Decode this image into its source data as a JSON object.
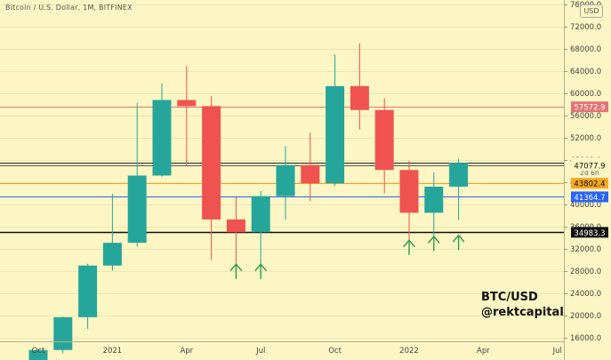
{
  "header": {
    "title": "Bitcoin / U.S. Dollar, 1M, BITFINEX"
  },
  "currency_button": "USD",
  "watermark": {
    "ticker": "BTC/USD",
    "handle": "@rektcapital"
  },
  "colors": {
    "up": "#26a69a",
    "down": "#ef5350",
    "background": "#fbf6c4"
  },
  "chart_data": {
    "type": "candlestick",
    "ylim": [
      15000,
      76000
    ],
    "y_ticks": [
      16000,
      20000,
      24000,
      28000,
      32000,
      36000,
      40000,
      44000,
      48000,
      52000,
      56000,
      60000,
      64000,
      68000,
      72000,
      76000
    ],
    "y_tick_labels": [
      "16000.0",
      "20000.0",
      "24000.0",
      "28000.0",
      "32000.0",
      "36000.0",
      "40000.0",
      "44000.0",
      "48000.0",
      "52000.0",
      "56000.0",
      "60000.0",
      "64000.0",
      "68000.0",
      "72000.0",
      "76000.0"
    ],
    "x_labels": [
      {
        "index": 0,
        "label": "Oct"
      },
      {
        "index": 3,
        "label": "2021"
      },
      {
        "index": 6,
        "label": "Apr"
      },
      {
        "index": 9,
        "label": "Jul"
      },
      {
        "index": 12,
        "label": "Oct"
      },
      {
        "index": 15,
        "label": "2022"
      },
      {
        "index": 18,
        "label": "Apr"
      },
      {
        "index": 21,
        "label": "Jul"
      }
    ],
    "candles": [
      {
        "month": "2020-10",
        "open": 10800,
        "high": 14000,
        "low": 10400,
        "close": 13800
      },
      {
        "month": "2020-11",
        "open": 13800,
        "high": 19800,
        "low": 13200,
        "close": 19700
      },
      {
        "month": "2020-12",
        "open": 19700,
        "high": 29300,
        "low": 17600,
        "close": 29000
      },
      {
        "month": "2021-01",
        "open": 29000,
        "high": 41900,
        "low": 28100,
        "close": 33100
      },
      {
        "month": "2021-02",
        "open": 33100,
        "high": 58300,
        "low": 32400,
        "close": 45200
      },
      {
        "month": "2021-03",
        "open": 45200,
        "high": 61800,
        "low": 45000,
        "close": 58800
      },
      {
        "month": "2021-04",
        "open": 58800,
        "high": 64900,
        "low": 47000,
        "close": 57700
      },
      {
        "month": "2021-05",
        "open": 57700,
        "high": 59500,
        "low": 30000,
        "close": 37300
      },
      {
        "month": "2021-06",
        "open": 37300,
        "high": 41300,
        "low": 28800,
        "close": 35000
      },
      {
        "month": "2021-07",
        "open": 35000,
        "high": 42400,
        "low": 29300,
        "close": 41500
      },
      {
        "month": "2021-08",
        "open": 41500,
        "high": 50500,
        "low": 37300,
        "close": 47100
      },
      {
        "month": "2021-09",
        "open": 47100,
        "high": 52900,
        "low": 40600,
        "close": 43800
      },
      {
        "month": "2021-10",
        "open": 43800,
        "high": 67000,
        "low": 43300,
        "close": 61300
      },
      {
        "month": "2021-11",
        "open": 61300,
        "high": 69000,
        "low": 53500,
        "close": 57000
      },
      {
        "month": "2021-12",
        "open": 57000,
        "high": 59100,
        "low": 42000,
        "close": 46200
      },
      {
        "month": "2022-01",
        "open": 46200,
        "high": 47900,
        "low": 33000,
        "close": 38500
      },
      {
        "month": "2022-02",
        "open": 38500,
        "high": 45800,
        "low": 34400,
        "close": 43200
      },
      {
        "month": "2022-03",
        "open": 43200,
        "high": 48200,
        "low": 37200,
        "close": 47500
      }
    ],
    "price_lines": [
      {
        "value": 57572.9,
        "label": "57572.9",
        "color": "#e57373",
        "label_bg": "#e57373",
        "label_color": "#ffffff"
      },
      {
        "value": 47503.8,
        "label": "47503.8",
        "color": "#222222",
        "label_bg": "#fbf6c4",
        "label_color": "#111111",
        "sublabel": "2d 6h"
      },
      {
        "value": 47077.9,
        "label": "47077.9",
        "color": "#555555",
        "label_bg": "#fbf6c4",
        "label_color": "#111111"
      },
      {
        "value": 43802.4,
        "label": "43802.4",
        "color": "#f5a623",
        "label_bg": "#f5a623",
        "label_color": "#111111"
      },
      {
        "value": 41364.7,
        "label": "41364.7",
        "color": "#2962ff",
        "label_bg": "#2962ff",
        "label_color": "#ffffff"
      },
      {
        "value": 34983.3,
        "label": "34983.3",
        "color": "#111111",
        "label_bg": "#111111",
        "label_color": "#ffffff"
      }
    ],
    "arrows": [
      {
        "index": 8,
        "value": 27000
      },
      {
        "index": 9,
        "value": 27000
      },
      {
        "index": 15,
        "value": 31300
      },
      {
        "index": 16,
        "value": 32000
      },
      {
        "index": 17,
        "value": 32200
      }
    ]
  }
}
